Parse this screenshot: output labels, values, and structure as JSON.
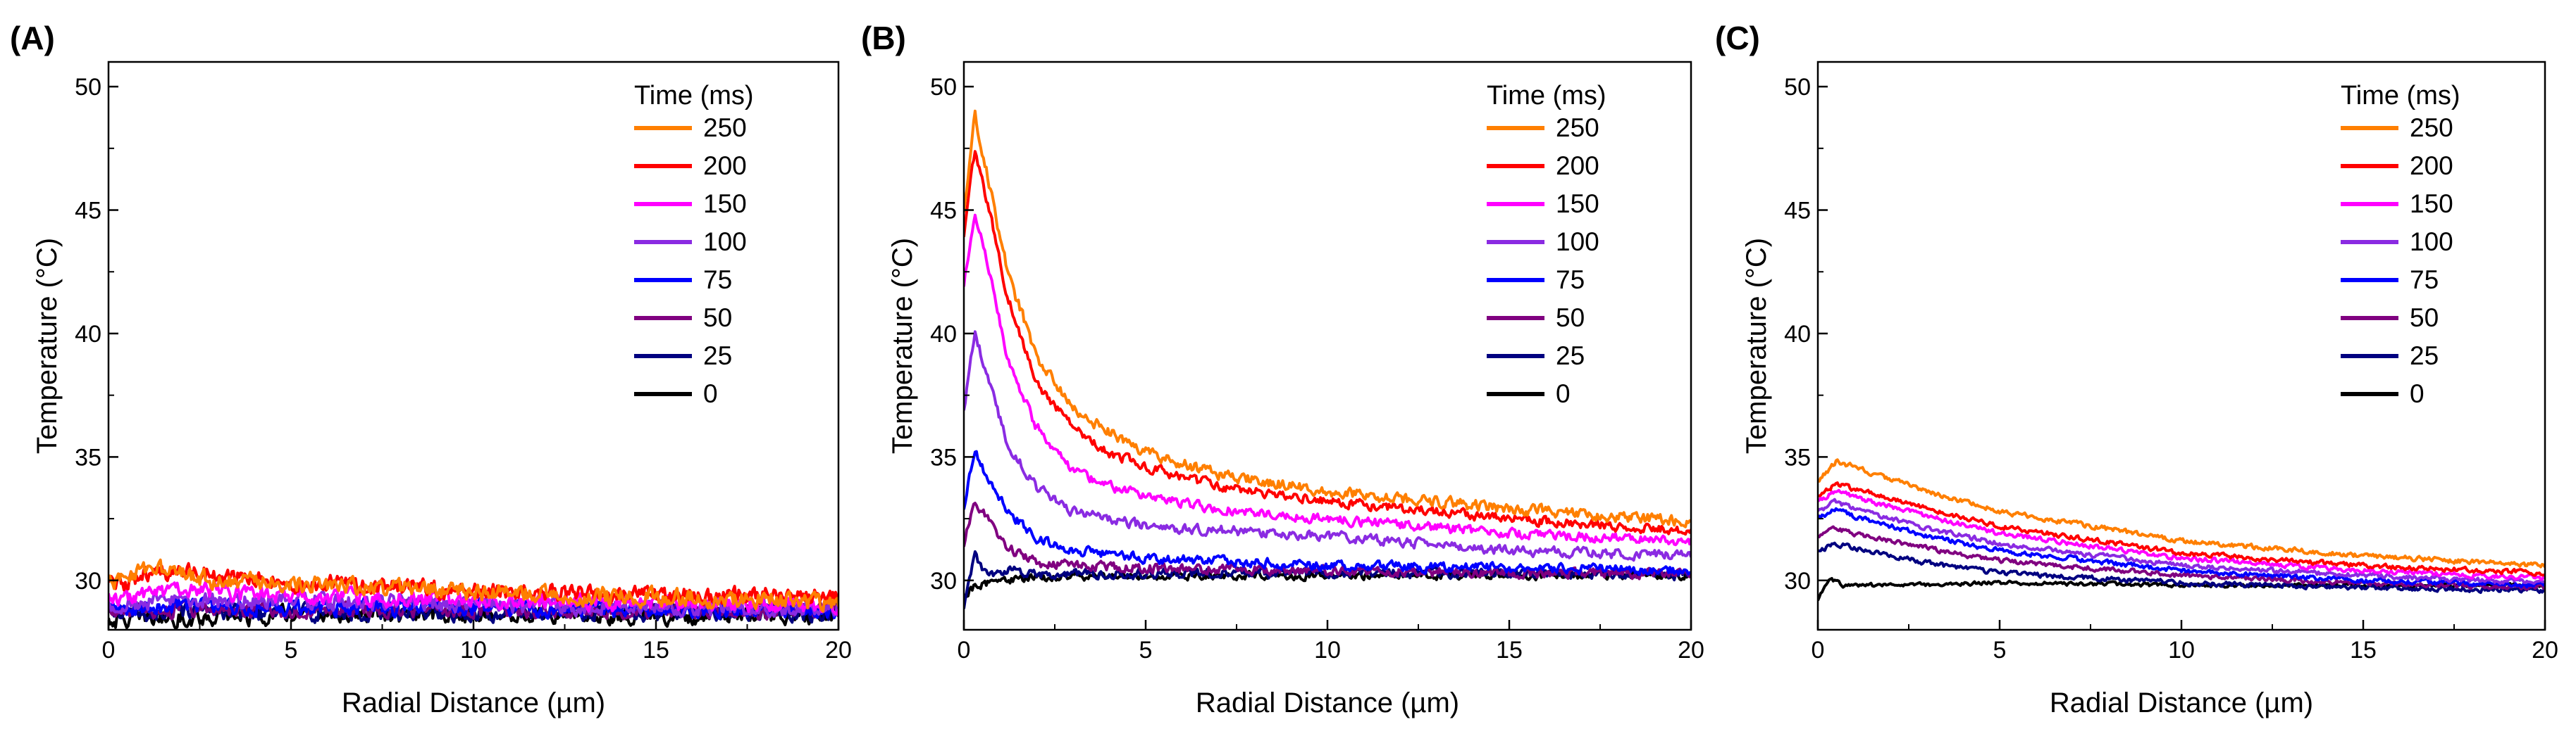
{
  "chart_data": [
    {
      "type": "line",
      "panel": "(A)",
      "xlabel": "Radial Distance (µm)",
      "ylabel": "Temperature (°C)",
      "xlim": [
        0,
        20
      ],
      "ylim": [
        28,
        51
      ],
      "xticks": [
        "0",
        "5",
        "10",
        "15",
        "20"
      ],
      "yticks": [
        "30",
        "35",
        "40",
        "45",
        "50"
      ],
      "legend_title": "Time (ms)",
      "legend_position": "top-right",
      "series": [
        {
          "name": "250",
          "color": "#ff7f00",
          "noise": 0.55,
          "points": [
            [
              0,
              29.9
            ],
            [
              1,
              30.5
            ],
            [
              2,
              30.2
            ],
            [
              3,
              30.0
            ],
            [
              5,
              29.9
            ],
            [
              10,
              29.5
            ],
            [
              15,
              29.3
            ],
            [
              20,
              29.1
            ]
          ]
        },
        {
          "name": "200",
          "color": "#ff0000",
          "noise": 0.55,
          "points": [
            [
              0,
              29.7
            ],
            [
              1,
              30.2
            ],
            [
              2,
              30.4
            ],
            [
              3,
              30.2
            ],
            [
              5,
              29.9
            ],
            [
              10,
              29.6
            ],
            [
              15,
              29.4
            ],
            [
              20,
              29.3
            ]
          ]
        },
        {
          "name": "150",
          "color": "#ff00ff",
          "noise": 0.5,
          "points": [
            [
              0,
              29.3
            ],
            [
              2,
              29.6
            ],
            [
              5,
              29.4
            ],
            [
              10,
              29.2
            ],
            [
              15,
              29.1
            ],
            [
              20,
              29.0
            ]
          ]
        },
        {
          "name": "100",
          "color": "#8a2be2",
          "noise": 0.5,
          "points": [
            [
              0,
              29.0
            ],
            [
              2,
              29.2
            ],
            [
              5,
              29.2
            ],
            [
              10,
              29.0
            ],
            [
              15,
              28.9
            ],
            [
              20,
              28.9
            ]
          ]
        },
        {
          "name": "75",
          "color": "#0000ff",
          "noise": 0.5,
          "points": [
            [
              0,
              28.8
            ],
            [
              2,
              29.0
            ],
            [
              5,
              28.9
            ],
            [
              10,
              28.9
            ],
            [
              15,
              28.8
            ],
            [
              20,
              28.8
            ]
          ]
        },
        {
          "name": "50",
          "color": "#800080",
          "noise": 0.5,
          "points": [
            [
              0,
              28.7
            ],
            [
              2,
              28.8
            ],
            [
              5,
              28.8
            ],
            [
              10,
              28.8
            ],
            [
              15,
              28.8
            ],
            [
              20,
              28.8
            ]
          ]
        },
        {
          "name": "25",
          "color": "#000080",
          "noise": 0.5,
          "points": [
            [
              0,
              28.6
            ],
            [
              2,
              28.7
            ],
            [
              5,
              28.7
            ],
            [
              10,
              28.7
            ],
            [
              15,
              28.7
            ],
            [
              20,
              28.7
            ]
          ]
        },
        {
          "name": "0",
          "color": "#000000",
          "noise": 0.55,
          "points": [
            [
              0,
              28.4
            ],
            [
              2,
              28.5
            ],
            [
              5,
              28.6
            ],
            [
              10,
              28.6
            ],
            [
              15,
              28.6
            ],
            [
              20,
              28.6
            ]
          ]
        }
      ]
    },
    {
      "type": "line",
      "panel": "(B)",
      "xlabel": "Radial Distance (µm)",
      "ylabel": "Temperature (°C)",
      "xlim": [
        0,
        20
      ],
      "ylim": [
        28,
        51
      ],
      "xticks": [
        "0",
        "5",
        "10",
        "15",
        "20"
      ],
      "yticks": [
        "30",
        "35",
        "40",
        "45",
        "50"
      ],
      "legend_title": "Time (ms)",
      "legend_position": "top-right",
      "series": [
        {
          "name": "250",
          "color": "#ff7f00",
          "noise": 0.35,
          "points": [
            [
              0,
              45
            ],
            [
              0.3,
              48.8
            ],
            [
              0.7,
              46
            ],
            [
              1.2,
              42.5
            ],
            [
              2,
              39
            ],
            [
              3,
              37
            ],
            [
              4,
              36
            ],
            [
              5,
              35.2
            ],
            [
              7,
              34.3
            ],
            [
              10,
              33.6
            ],
            [
              15,
              32.9
            ],
            [
              20,
              32.4
            ]
          ]
        },
        {
          "name": "200",
          "color": "#ff0000",
          "noise": 0.3,
          "points": [
            [
              0,
              44
            ],
            [
              0.3,
              47.4
            ],
            [
              0.7,
              45
            ],
            [
              1.2,
              41.5
            ],
            [
              2,
              38
            ],
            [
              3,
              36.2
            ],
            [
              4,
              35.2
            ],
            [
              5,
              34.6
            ],
            [
              7,
              33.8
            ],
            [
              10,
              33.2
            ],
            [
              15,
              32.5
            ],
            [
              20,
              32.0
            ]
          ]
        },
        {
          "name": "150",
          "color": "#ff00ff",
          "noise": 0.3,
          "points": [
            [
              0,
              42
            ],
            [
              0.3,
              45
            ],
            [
              0.7,
              42.5
            ],
            [
              1.2,
              39
            ],
            [
              2,
              36.2
            ],
            [
              3,
              34.5
            ],
            [
              4,
              33.8
            ],
            [
              5,
              33.4
            ],
            [
              7,
              32.9
            ],
            [
              10,
              32.5
            ],
            [
              15,
              31.9
            ],
            [
              20,
              31.6
            ]
          ]
        },
        {
          "name": "100",
          "color": "#8a2be2",
          "noise": 0.3,
          "points": [
            [
              0,
              37
            ],
            [
              0.3,
              40
            ],
            [
              0.7,
              38
            ],
            [
              1.2,
              35.5
            ],
            [
              2,
              33.8
            ],
            [
              3,
              32.8
            ],
            [
              5,
              32.2
            ],
            [
              10,
              31.8
            ],
            [
              15,
              31.2
            ],
            [
              20,
              31.0
            ]
          ]
        },
        {
          "name": "75",
          "color": "#0000ff",
          "noise": 0.3,
          "points": [
            [
              0,
              33
            ],
            [
              0.3,
              35.2
            ],
            [
              0.7,
              34
            ],
            [
              1.2,
              32.8
            ],
            [
              2,
              31.7
            ],
            [
              3,
              31.2
            ],
            [
              5,
              30.9
            ],
            [
              10,
              30.6
            ],
            [
              15,
              30.5
            ],
            [
              20,
              30.4
            ]
          ]
        },
        {
          "name": "50",
          "color": "#800080",
          "noise": 0.3,
          "points": [
            [
              0,
              31.5
            ],
            [
              0.3,
              33.2
            ],
            [
              0.7,
              32.4
            ],
            [
              1.2,
              31.3
            ],
            [
              2,
              30.7
            ],
            [
              5,
              30.5
            ],
            [
              10,
              30.4
            ],
            [
              15,
              30.3
            ],
            [
              20,
              30.3
            ]
          ]
        },
        {
          "name": "25",
          "color": "#000080",
          "noise": 0.3,
          "points": [
            [
              0,
              29
            ],
            [
              0.3,
              31
            ],
            [
              0.6,
              30.2
            ],
            [
              1.2,
              30.4
            ],
            [
              2,
              30.2
            ],
            [
              5,
              30.3
            ],
            [
              10,
              30.3
            ],
            [
              15,
              30.3
            ],
            [
              20,
              30.2
            ]
          ]
        },
        {
          "name": "0",
          "color": "#000000",
          "noise": 0.25,
          "points": [
            [
              0,
              29.3
            ],
            [
              0.3,
              29.8
            ],
            [
              1,
              30.0
            ],
            [
              2,
              30.1
            ],
            [
              5,
              30.2
            ],
            [
              10,
              30.2
            ],
            [
              15,
              30.2
            ],
            [
              20,
              30.2
            ]
          ]
        }
      ]
    },
    {
      "type": "line",
      "panel": "(C)",
      "xlabel": "Radial Distance (µm)",
      "ylabel": "Temperature (°C)",
      "xlim": [
        0,
        20
      ],
      "ylim": [
        28,
        51
      ],
      "xticks": [
        "0",
        "5",
        "10",
        "15",
        "20"
      ],
      "yticks": [
        "30",
        "35",
        "40",
        "45",
        "50"
      ],
      "legend_title": "Time (ms)",
      "legend_position": "top-right",
      "series": [
        {
          "name": "250",
          "color": "#ff7f00",
          "noise": 0.15,
          "points": [
            [
              0,
              34.0
            ],
            [
              0.5,
              34.8
            ],
            [
              1,
              34.6
            ],
            [
              2,
              34.1
            ],
            [
              3,
              33.6
            ],
            [
              5,
              32.8
            ],
            [
              10,
              31.6
            ],
            [
              15,
              31.0
            ],
            [
              20,
              30.6
            ]
          ]
        },
        {
          "name": "200",
          "color": "#ff0000",
          "noise": 0.15,
          "points": [
            [
              0,
              33.4
            ],
            [
              0.5,
              33.9
            ],
            [
              1,
              33.7
            ],
            [
              2,
              33.3
            ],
            [
              3,
              32.9
            ],
            [
              5,
              32.2
            ],
            [
              10,
              31.1
            ],
            [
              15,
              30.6
            ],
            [
              20,
              30.3
            ]
          ]
        },
        {
          "name": "150",
          "color": "#ff00ff",
          "noise": 0.15,
          "points": [
            [
              0,
              33.2
            ],
            [
              0.5,
              33.6
            ],
            [
              1,
              33.4
            ],
            [
              2,
              33.0
            ],
            [
              3,
              32.6
            ],
            [
              5,
              31.9
            ],
            [
              10,
              30.9
            ],
            [
              15,
              30.4
            ],
            [
              20,
              30.1
            ]
          ]
        },
        {
          "name": "100",
          "color": "#8a2be2",
          "noise": 0.15,
          "points": [
            [
              0,
              32.8
            ],
            [
              0.5,
              33.2
            ],
            [
              1,
              32.9
            ],
            [
              2,
              32.5
            ],
            [
              3,
              32.1
            ],
            [
              5,
              31.5
            ],
            [
              10,
              30.6
            ],
            [
              15,
              30.2
            ],
            [
              20,
              29.9
            ]
          ]
        },
        {
          "name": "75",
          "color": "#0000ff",
          "noise": 0.15,
          "points": [
            [
              0,
              32.5
            ],
            [
              0.5,
              32.9
            ],
            [
              1,
              32.6
            ],
            [
              2,
              32.2
            ],
            [
              3,
              31.8
            ],
            [
              5,
              31.2
            ],
            [
              10,
              30.4
            ],
            [
              15,
              30.0
            ],
            [
              20,
              29.8
            ]
          ]
        },
        {
          "name": "50",
          "color": "#800080",
          "noise": 0.15,
          "points": [
            [
              0,
              31.8
            ],
            [
              0.5,
              32.1
            ],
            [
              1,
              31.9
            ],
            [
              2,
              31.6
            ],
            [
              3,
              31.3
            ],
            [
              5,
              30.8
            ],
            [
              10,
              30.2
            ],
            [
              15,
              29.9
            ],
            [
              20,
              29.7
            ]
          ]
        },
        {
          "name": "25",
          "color": "#000080",
          "noise": 0.15,
          "points": [
            [
              0,
              31.2
            ],
            [
              0.5,
              31.5
            ],
            [
              1,
              31.3
            ],
            [
              2,
              31.0
            ],
            [
              3,
              30.7
            ],
            [
              5,
              30.3
            ],
            [
              10,
              29.9
            ],
            [
              15,
              29.7
            ],
            [
              20,
              29.6
            ]
          ]
        },
        {
          "name": "0",
          "color": "#000000",
          "noise": 0.12,
          "points": [
            [
              0,
              29.2
            ],
            [
              0.3,
              30.1
            ],
            [
              0.7,
              29.8
            ],
            [
              2,
              29.8
            ],
            [
              5,
              29.9
            ],
            [
              10,
              29.8
            ],
            [
              15,
              29.8
            ],
            [
              20,
              29.8
            ]
          ]
        }
      ]
    }
  ]
}
